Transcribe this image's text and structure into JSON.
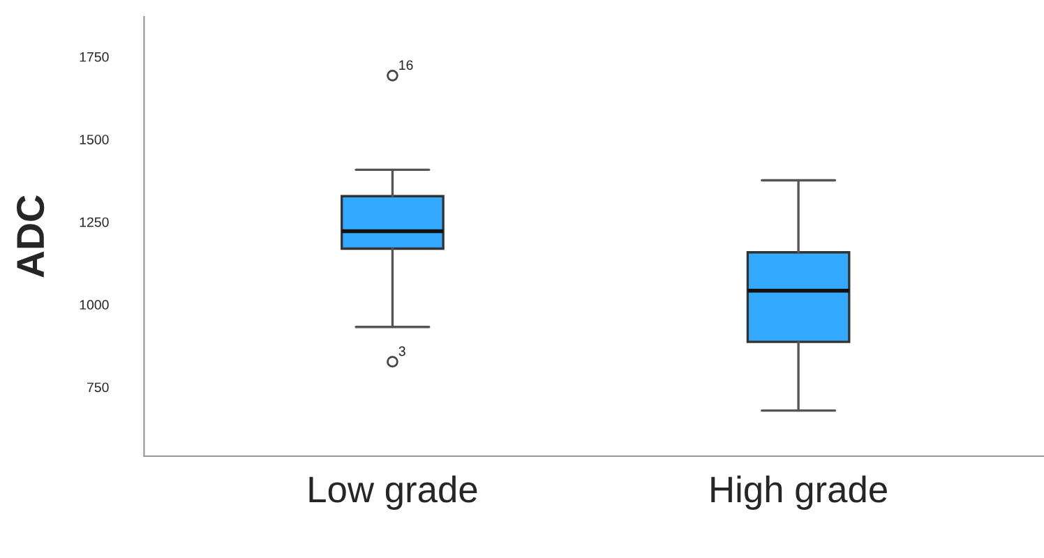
{
  "chart_data": {
    "type": "box",
    "ylabel": "ADC",
    "categories": [
      "Low grade",
      "High grade"
    ],
    "boxes": [
      {
        "low": 932,
        "q1": 1169,
        "median": 1222,
        "q3": 1328,
        "high": 1408,
        "outliers": [
          1693,
          827
        ]
      },
      {
        "low": 679,
        "q1": 887,
        "median": 1042,
        "q3": 1158,
        "high": 1376
      }
    ],
    "color": "#33aaff",
    "ylim": [
      541,
      1871
    ],
    "yticks": [
      750,
      1000,
      1250,
      1500,
      1750
    ],
    "annotations": [
      "16",
      "3"
    ],
    "grid": false
  }
}
